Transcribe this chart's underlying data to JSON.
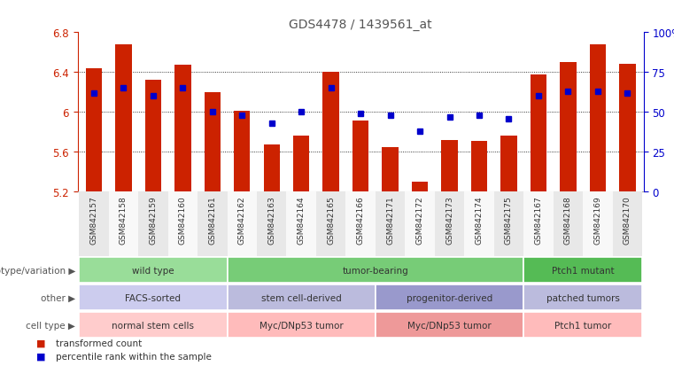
{
  "title": "GDS4478 / 1439561_at",
  "samples": [
    "GSM842157",
    "GSM842158",
    "GSM842159",
    "GSM842160",
    "GSM842161",
    "GSM842162",
    "GSM842163",
    "GSM842164",
    "GSM842165",
    "GSM842166",
    "GSM842171",
    "GSM842172",
    "GSM842173",
    "GSM842174",
    "GSM842175",
    "GSM842167",
    "GSM842168",
    "GSM842169",
    "GSM842170"
  ],
  "bar_values": [
    6.44,
    6.68,
    6.32,
    6.47,
    6.2,
    6.01,
    5.67,
    5.76,
    6.4,
    5.91,
    5.65,
    5.3,
    5.72,
    5.71,
    5.76,
    6.38,
    6.5,
    6.68,
    6.48
  ],
  "percentile_values": [
    62,
    65,
    60,
    65,
    50,
    48,
    43,
    50,
    65,
    49,
    48,
    38,
    47,
    48,
    46,
    60,
    63,
    63,
    62
  ],
  "ymin": 5.2,
  "ymax": 6.8,
  "bar_color": "#CC2200",
  "dot_color": "#0000CC",
  "title_color": "#555555",
  "left_axis_color": "#CC2200",
  "right_axis_color": "#0000CC",
  "annotation_rows": [
    {
      "label": "genotype/variation",
      "groups": [
        {
          "text": "wild type",
          "span": [
            0,
            4
          ],
          "color": "#99DD99"
        },
        {
          "text": "tumor-bearing",
          "span": [
            5,
            14
          ],
          "color": "#77CC77"
        },
        {
          "text": "Ptch1 mutant",
          "span": [
            15,
            18
          ],
          "color": "#55BB55"
        }
      ]
    },
    {
      "label": "other",
      "groups": [
        {
          "text": "FACS-sorted",
          "span": [
            0,
            4
          ],
          "color": "#CCCCEE"
        },
        {
          "text": "stem cell-derived",
          "span": [
            5,
            9
          ],
          "color": "#BBBBDD"
        },
        {
          "text": "progenitor-derived",
          "span": [
            10,
            14
          ],
          "color": "#9999CC"
        },
        {
          "text": "patched tumors",
          "span": [
            15,
            18
          ],
          "color": "#BBBBDD"
        }
      ]
    },
    {
      "label": "cell type",
      "groups": [
        {
          "text": "normal stem cells",
          "span": [
            0,
            4
          ],
          "color": "#FFCCCC"
        },
        {
          "text": "Myc/DNp53 tumor",
          "span": [
            5,
            9
          ],
          "color": "#FFBBBB"
        },
        {
          "text": "Myc/DNp53 tumor",
          "span": [
            10,
            14
          ],
          "color": "#EE9999"
        },
        {
          "text": "Ptch1 tumor",
          "span": [
            15,
            18
          ],
          "color": "#FFBBBB"
        }
      ]
    }
  ],
  "legend_items": [
    {
      "color": "#CC2200",
      "label": "transformed count"
    },
    {
      "color": "#0000CC",
      "label": "percentile rank within the sample"
    }
  ]
}
